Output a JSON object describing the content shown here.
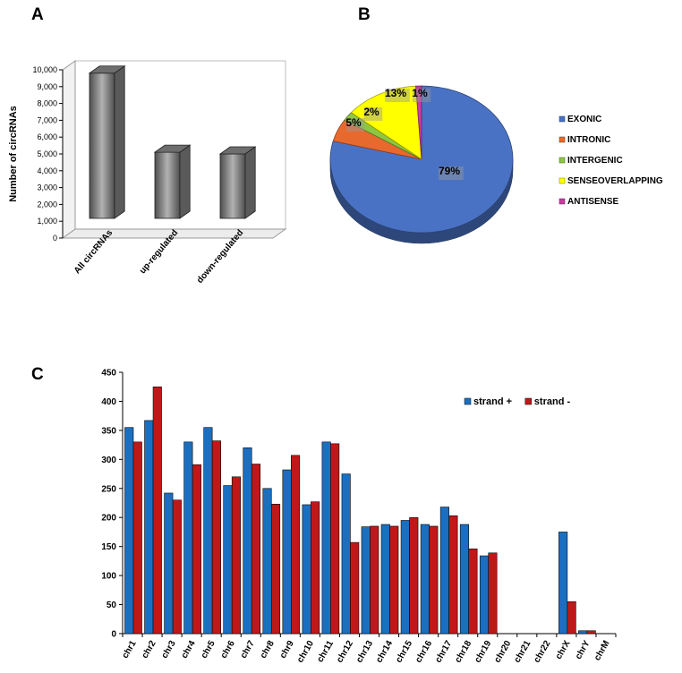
{
  "panels": {
    "a": "A",
    "b": "B",
    "c": "C"
  },
  "chart_data": [
    {
      "type": "bar",
      "panel": "A",
      "title": "",
      "ylabel": "Number of circRNAs",
      "xlabel": "",
      "categories": [
        "All circRNAs",
        "up-regulated",
        "down-regulated"
      ],
      "values": [
        9800,
        5100,
        5000
      ],
      "ylim": [
        0,
        10000
      ],
      "yticks": [
        "0",
        "1,000",
        "2,000",
        "3,000",
        "4,000",
        "5,000",
        "6,000",
        "7,000",
        "8,000",
        "9,000",
        "10,000"
      ],
      "colors": {
        "bar": "#808080"
      }
    },
    {
      "type": "pie",
      "panel": "B",
      "labels": [
        "EXONIC",
        "INTRONIC",
        "INTERGENIC",
        "SENSEOVERLAPPING",
        "ANTISENSE"
      ],
      "values": [
        79,
        5,
        2,
        13,
        1
      ],
      "data_labels": [
        "79%",
        "5%",
        "2%",
        "13%",
        "1%"
      ],
      "colors": [
        "#4a72c4",
        "#e8692e",
        "#8dc641",
        "#ffff00",
        "#c83ca0"
      ]
    },
    {
      "type": "bar",
      "panel": "C",
      "title": "",
      "xlabel": "",
      "ylabel": "",
      "categories": [
        "chr1",
        "chr2",
        "chr3",
        "chr4",
        "chr5",
        "chr6",
        "chr7",
        "chr8",
        "chr9",
        "chr10",
        "chr11",
        "chr12",
        "chr13",
        "chr14",
        "chr15",
        "chr16",
        "chr17",
        "chr18",
        "chr19",
        "chr20",
        "chr21",
        "chr22",
        "chrX",
        "chrY",
        "chrM"
      ],
      "series": [
        {
          "name": "strand +",
          "color": "#1b6fc0",
          "values": [
            355,
            367,
            242,
            330,
            355,
            255,
            320,
            250,
            282,
            222,
            330,
            275,
            184,
            188,
            195,
            188,
            218,
            188,
            134,
            0,
            0,
            0,
            175,
            5,
            0
          ]
        },
        {
          "name": "strand -",
          "color": "#c01818",
          "values": [
            330,
            425,
            230,
            291,
            332,
            270,
            292,
            223,
            307,
            227,
            327,
            157,
            185,
            185,
            200,
            185,
            203,
            146,
            139,
            0,
            0,
            0,
            55,
            5,
            0
          ]
        }
      ],
      "ylim": [
        0,
        450
      ],
      "yticks": [
        "0",
        "50",
        "100",
        "150",
        "200",
        "250",
        "300",
        "350",
        "400",
        "450"
      ],
      "legend_position": "top-right"
    }
  ]
}
